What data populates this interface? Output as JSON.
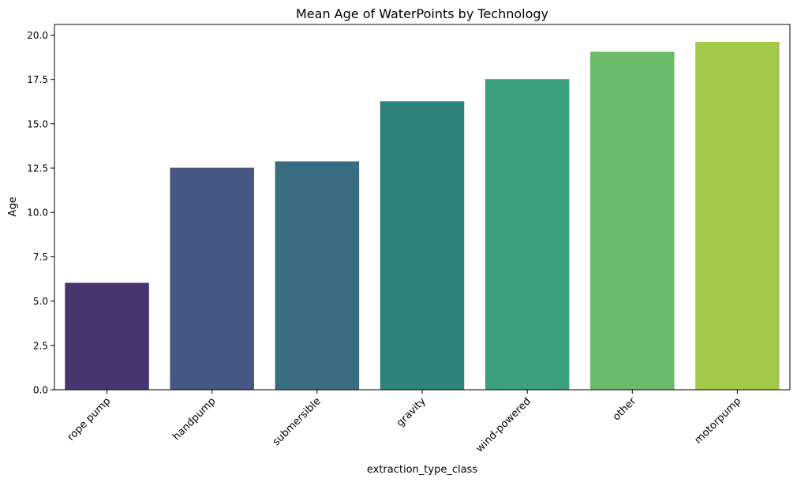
{
  "chart_data": {
    "type": "bar",
    "title": "Mean Age of WaterPoints by Technology",
    "xlabel": "extraction_type_class",
    "ylabel": "Age",
    "categories": [
      "rope pump",
      "handpump",
      "submersible",
      "gravity",
      "wind-powered",
      "other",
      "motorpump"
    ],
    "values": [
      6.03,
      12.52,
      12.88,
      16.27,
      17.52,
      19.06,
      19.62
    ],
    "colors": [
      "#4a3470",
      "#465882",
      "#3a6d82",
      "#2e837d",
      "#3ba07d",
      "#6bbb6b",
      "#a3c94a"
    ],
    "ylim": [
      0,
      20.6
    ],
    "yticks": [
      "0.0",
      "2.5",
      "5.0",
      "7.5",
      "10.0",
      "12.5",
      "15.0",
      "17.5",
      "20.0"
    ],
    "grid": false,
    "legend": "none"
  }
}
